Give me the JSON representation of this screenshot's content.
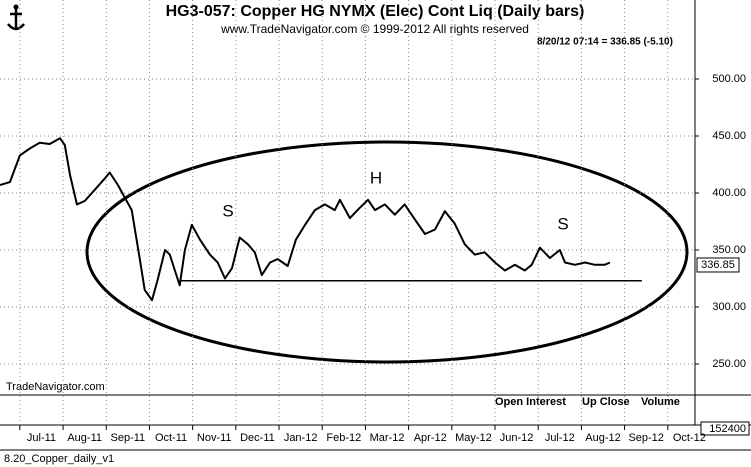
{
  "chart_data": {
    "type": "line",
    "title": "HG3-057:  Copper HG NYMX (Elec) Cont Liq  (Daily bars)",
    "subtitle": "www.TradeNavigator.com © 1999-2012 All rights reserved",
    "quote": "8/20/12 07:14 = 336.85 (-5.10)",
    "watermark": "TradeNavigator.com",
    "footer": "8.20_Copper_daily_v1",
    "annotations": [
      "S",
      "H",
      "S"
    ],
    "panel_labels": [
      "Open Interest",
      "Up Close",
      "Volume"
    ],
    "volume_label": "152400",
    "last_price": 336.85,
    "neckline": {
      "value": 323,
      "x": [
        3.7,
        14.4
      ]
    },
    "x": [
      -0.46,
      -0.23,
      0,
      0.23,
      0.46,
      0.69,
      0.93,
      1.04,
      1.16,
      1.32,
      1.5,
      1.74,
      1.97,
      2.08,
      2.27,
      2.43,
      2.59,
      2.78,
      2.89,
      3.06,
      3.19,
      3.36,
      3.47,
      3.59,
      3.7,
      3.82,
      3.98,
      4.17,
      4.4,
      4.58,
      4.75,
      4.91,
      5.09,
      5.28,
      5.44,
      5.6,
      5.79,
      5.97,
      6.2,
      6.39,
      6.6,
      6.83,
      7.06,
      7.29,
      7.41,
      7.64,
      7.87,
      8.06,
      8.22,
      8.45,
      8.68,
      8.91,
      9.14,
      9.38,
      9.61,
      9.84,
      10.07,
      10.3,
      10.53,
      10.76,
      11.0,
      11.23,
      11.46,
      11.69,
      11.85,
      12.04,
      12.27,
      12.5,
      12.62,
      12.85,
      13.08,
      13.31,
      13.54,
      13.66
    ],
    "series": [
      {
        "name": "Copper",
        "color": "#000000",
        "values": [
          407,
          409.6,
          433,
          439,
          444,
          443,
          448,
          442,
          416,
          390,
          393,
          403,
          413,
          418,
          407,
          396,
          385,
          341,
          315,
          306,
          324,
          350,
          346,
          332,
          319,
          350,
          372,
          359,
          346,
          339,
          325,
          334,
          361,
          355,
          348,
          328,
          339,
          342,
          336,
          359,
          372,
          385,
          390,
          385,
          394,
          378,
          387,
          394,
          385,
          390,
          381,
          390,
          377,
          364,
          368,
          384,
          373,
          355,
          346,
          348,
          339,
          332,
          337,
          332,
          337,
          352,
          343,
          350,
          339,
          337,
          339,
          337,
          337,
          339
        ]
      }
    ],
    "xlim": [
      -0.46,
      15.63
    ],
    "xticks": [
      {
        "value": 0,
        "label": "Jul-11"
      },
      {
        "value": 1,
        "label": "Aug-11"
      },
      {
        "value": 2,
        "label": "Sep-11"
      },
      {
        "value": 3,
        "label": "Oct-11"
      },
      {
        "value": 4,
        "label": "Nov-11"
      },
      {
        "value": 5,
        "label": "Dec-11"
      },
      {
        "value": 6,
        "label": "Jan-12"
      },
      {
        "value": 7,
        "label": "Feb-12"
      },
      {
        "value": 8,
        "label": "Mar-12"
      },
      {
        "value": 9,
        "label": "Apr-12"
      },
      {
        "value": 10,
        "label": "May-12"
      },
      {
        "value": 11,
        "label": "Jun-12"
      },
      {
        "value": 12,
        "label": "Jul-12"
      },
      {
        "value": 13,
        "label": "Aug-12"
      },
      {
        "value": 14,
        "label": "Sep-12"
      },
      {
        "value": 15,
        "label": "Oct-12"
      }
    ],
    "ylim": [
      222.8,
      569.3
    ],
    "yticks": [
      {
        "value": 250,
        "label": "250.00"
      },
      {
        "value": 300,
        "label": "300.00"
      },
      {
        "value": 350,
        "label": "350.00"
      },
      {
        "value": 400,
        "label": "400.00"
      },
      {
        "value": 450,
        "label": "450.00"
      },
      {
        "value": 500,
        "label": "500.00"
      }
    ],
    "grid": true
  }
}
